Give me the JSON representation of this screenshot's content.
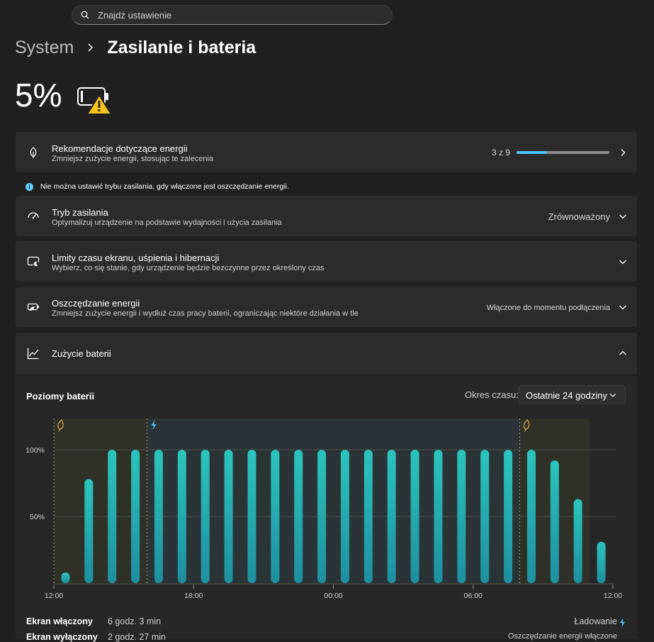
{
  "search": {
    "placeholder": "Znajdź ustawienie"
  },
  "breadcrumb": {
    "root": "System",
    "current": "Zasilanie i bateria"
  },
  "battery": {
    "percent": "5%",
    "icon": "battery-warning-icon",
    "level": 0.05
  },
  "cards": {
    "recommendations": {
      "title": "Rekomendacje dotyczące energii",
      "subtitle": "Zmniejsz zużycie energii, stosując te zalecenia",
      "count": "3 z 9",
      "progress": 0.33,
      "icon": "leaf-icon"
    },
    "info_note": "Nie można ustawić trybu zasilania, gdy włączone jest oszczędzanie energii.",
    "power_mode": {
      "title": "Tryb zasilania",
      "subtitle": "Optymalizuj urządzenie na podstawie wydajności i użycia zasilania",
      "value": "Zrównoważony",
      "icon": "speedometer-icon"
    },
    "screen_sleep": {
      "title": "Limity czasu ekranu, uśpienia i hibernacji",
      "subtitle": "Wybierz, co się stanie, gdy urządzenie będzie bezczynne przez określony czas",
      "icon": "screen-sleep-icon"
    },
    "energy_saver": {
      "title": "Oszczędzanie energii",
      "subtitle": "Zmniejsz zużycie energii i wydłuż czas pracy baterii, ograniczając niektóre działania w tle",
      "value": "Włączone do momentu podłączenia",
      "icon": "battery-saver-icon"
    },
    "battery_usage": {
      "title": "Zużycie baterii",
      "icon": "chart-line-icon"
    }
  },
  "usage": {
    "section_title": "Poziomy baterii",
    "period_label": "Okres czasu:",
    "period_value": "Ostatnie 24 godziny",
    "stats": {
      "screen_on_label": "Ekran włączony",
      "screen_on_value": "6 godz. 3 min",
      "screen_off_label": "Ekran wyłączony",
      "screen_off_value": "2 godz. 27 min",
      "legend_charging": "Ładowanie",
      "legend_saver": "Oszczędzanie energii włączone"
    }
  },
  "colors": {
    "accent": "#4cc2ff",
    "bar": "#27b3b0",
    "saver": "#d9a54a"
  },
  "chart_data": {
    "type": "bar",
    "title": "Poziomy baterii",
    "ylabel": "",
    "xlabel": "",
    "ylim": [
      0,
      100
    ],
    "y_ticks": [
      "50%",
      "100%"
    ],
    "x_ticks": [
      "12:00",
      "18:00",
      "00:00",
      "06:00",
      "12:00"
    ],
    "x_range_hours": [
      0,
      24
    ],
    "bar_width_hours": 1,
    "values": [
      8,
      78,
      100,
      100,
      100,
      100,
      100,
      100,
      100,
      100,
      100,
      100,
      100,
      100,
      100,
      100,
      100,
      100,
      100,
      100,
      100,
      92,
      63,
      31
    ],
    "regions": [
      {
        "type": "saver",
        "start_hour": 0,
        "end_hour": 4
      },
      {
        "type": "charging",
        "start_hour": 4,
        "end_hour": 20
      },
      {
        "type": "saver",
        "start_hour": 20,
        "end_hour": 23
      }
    ],
    "grid": true
  }
}
